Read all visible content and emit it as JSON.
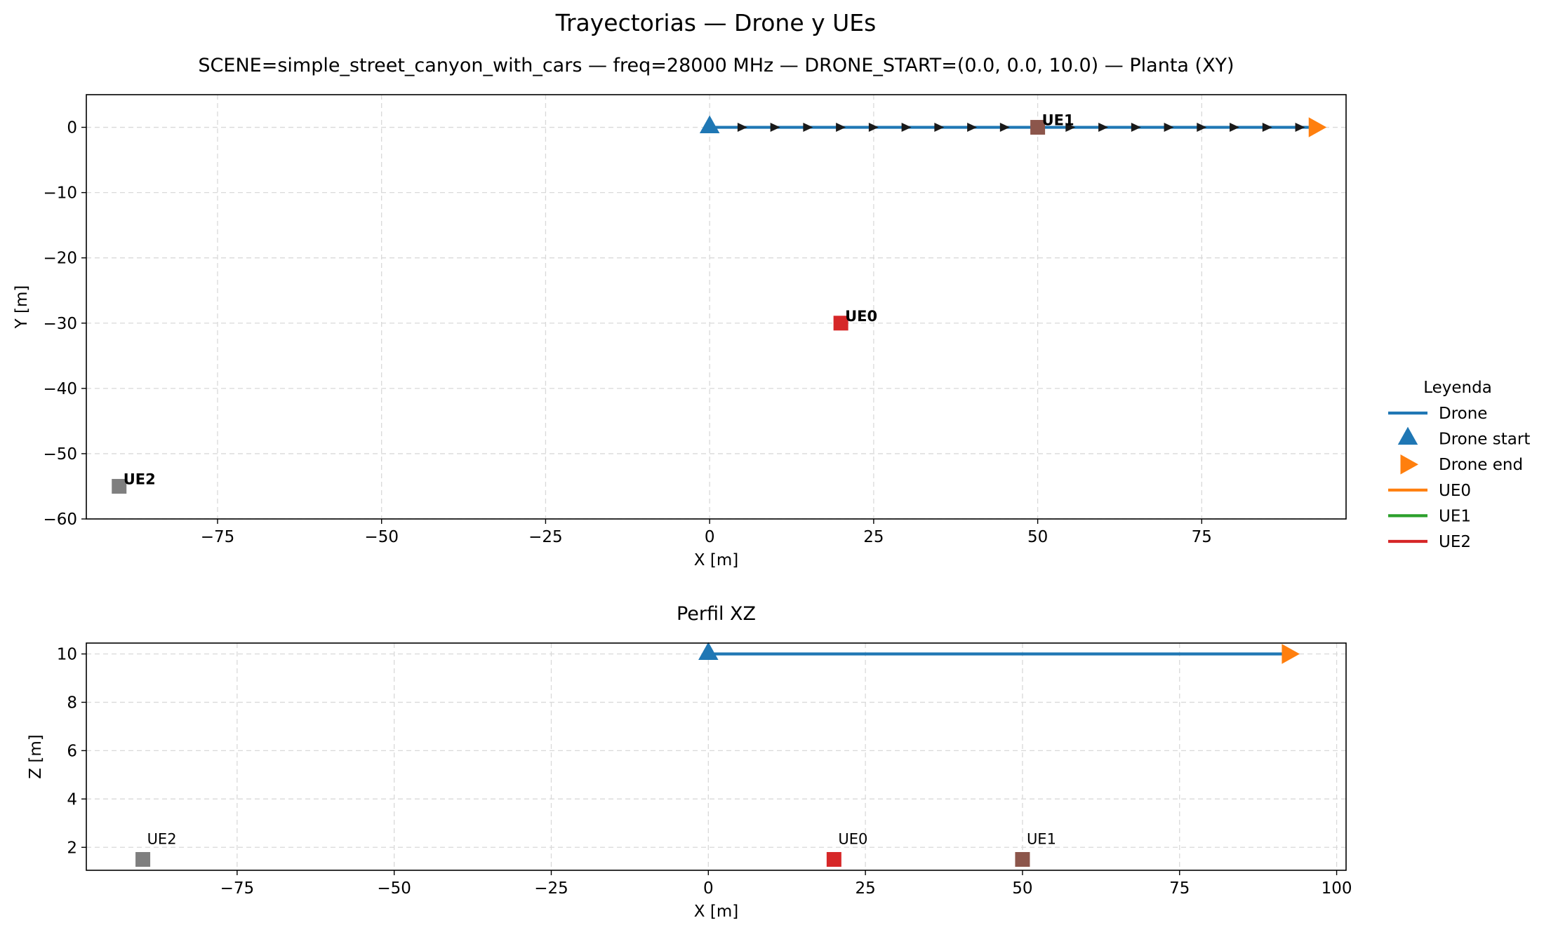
{
  "figure": {
    "suptitle": "Trayectorias — Drone y UEs"
  },
  "colors": {
    "drone": "#1f77b4",
    "drone_end": "#ff7f0e",
    "ue0_line": "#ff7f0e",
    "ue1_line": "#2ca02c",
    "ue2_line": "#d62728",
    "ue0_marker": "#d62728",
    "ue1_marker": "#8c564b",
    "ue2_marker": "#7f7f7f",
    "grid": "#d9d9d9"
  },
  "legend": {
    "title": "Leyenda",
    "placement": "right",
    "entries": [
      {
        "label": "Drone",
        "kind": "line",
        "color": "#1f77b4"
      },
      {
        "label": "Drone start",
        "kind": "triangle-up",
        "color": "#1f77b4"
      },
      {
        "label": "Drone end",
        "kind": "triangle-right",
        "color": "#ff7f0e"
      },
      {
        "label": "UE0",
        "kind": "line",
        "color": "#ff7f0e"
      },
      {
        "label": "UE1",
        "kind": "line",
        "color": "#2ca02c"
      },
      {
        "label": "UE2",
        "kind": "line",
        "color": "#d62728"
      }
    ]
  },
  "chart_data": [
    {
      "type": "line",
      "panel": "top",
      "title": "SCENE=simple_street_canyon_with_cars — freq=28000 MHz — DRONE_START=(0.0, 0.0, 10.0) — Planta (XY)",
      "xlabel": "X [m]",
      "ylabel": "Y [m]",
      "xlim": [
        -95,
        97
      ],
      "ylim": [
        -60,
        5
      ],
      "xticks": [
        -75,
        -50,
        -25,
        0,
        25,
        50,
        75
      ],
      "yticks": [
        0,
        -10,
        -20,
        -30,
        -40,
        -50,
        -60
      ],
      "grid": true,
      "drone_path": {
        "name": "Drone",
        "x": [
          0,
          92
        ],
        "y": [
          0,
          0
        ]
      },
      "direction_arrows_x": [
        5,
        10,
        15,
        20,
        25,
        30,
        35,
        40,
        45,
        50,
        55,
        60,
        65,
        70,
        75,
        80,
        85,
        90
      ],
      "drone_start": {
        "x": 0,
        "y": 0
      },
      "drone_end": {
        "x": 92,
        "y": 0
      },
      "ues": [
        {
          "label": "UE0",
          "x": 20,
          "y": -30,
          "color": "#d62728"
        },
        {
          "label": "UE1",
          "x": 50,
          "y": 0,
          "color": "#8c564b"
        },
        {
          "label": "UE2",
          "x": -90,
          "y": -55,
          "color": "#7f7f7f"
        }
      ]
    },
    {
      "type": "line",
      "panel": "bottom",
      "title": "Perfil XZ",
      "xlabel": "X [m]",
      "ylabel": "Z [m]",
      "xlim": [
        -99,
        101.5
      ],
      "ylim": [
        1.05,
        10.45
      ],
      "xticks": [
        -75,
        -50,
        -25,
        0,
        25,
        50,
        75,
        100
      ],
      "yticks": [
        2,
        4,
        6,
        8,
        10
      ],
      "grid": true,
      "drone_path": {
        "name": "Drone",
        "x": [
          0,
          92
        ],
        "z": [
          10,
          10
        ]
      },
      "drone_start": {
        "x": 0,
        "z": 10
      },
      "drone_end": {
        "x": 92,
        "z": 10
      },
      "ues": [
        {
          "label": "UE0",
          "x": 20,
          "z": 1.5,
          "color": "#d62728"
        },
        {
          "label": "UE1",
          "x": 50,
          "z": 1.5,
          "color": "#8c564b"
        },
        {
          "label": "UE2",
          "x": -90,
          "z": 1.5,
          "color": "#7f7f7f"
        }
      ]
    }
  ]
}
